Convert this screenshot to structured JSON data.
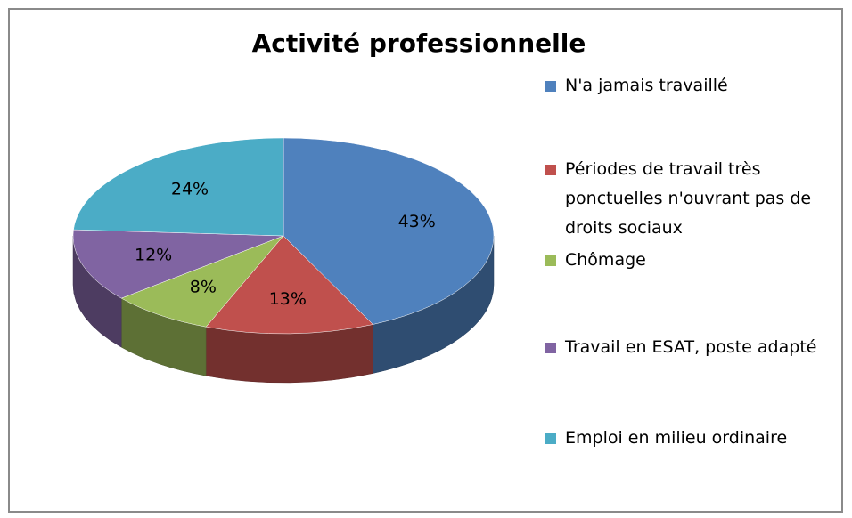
{
  "chart_data": {
    "type": "pie",
    "title": "Activité professionnelle",
    "categories": [
      "N'a jamais travaillé",
      "Périodes de travail très ponctuelles n'ouvrant pas de droits sociaux",
      "Chômage",
      "Travail en ESAT, poste adapté",
      "Emploi en milieu ordinaire"
    ],
    "values": [
      43,
      13,
      8,
      12,
      24
    ],
    "value_labels": [
      "43%",
      "13%",
      "8%",
      "12%",
      "24%"
    ],
    "colors": [
      "#4f81bd",
      "#c0504d",
      "#9bbb59",
      "#8064a2",
      "#4bacc6"
    ],
    "legend": "right"
  }
}
